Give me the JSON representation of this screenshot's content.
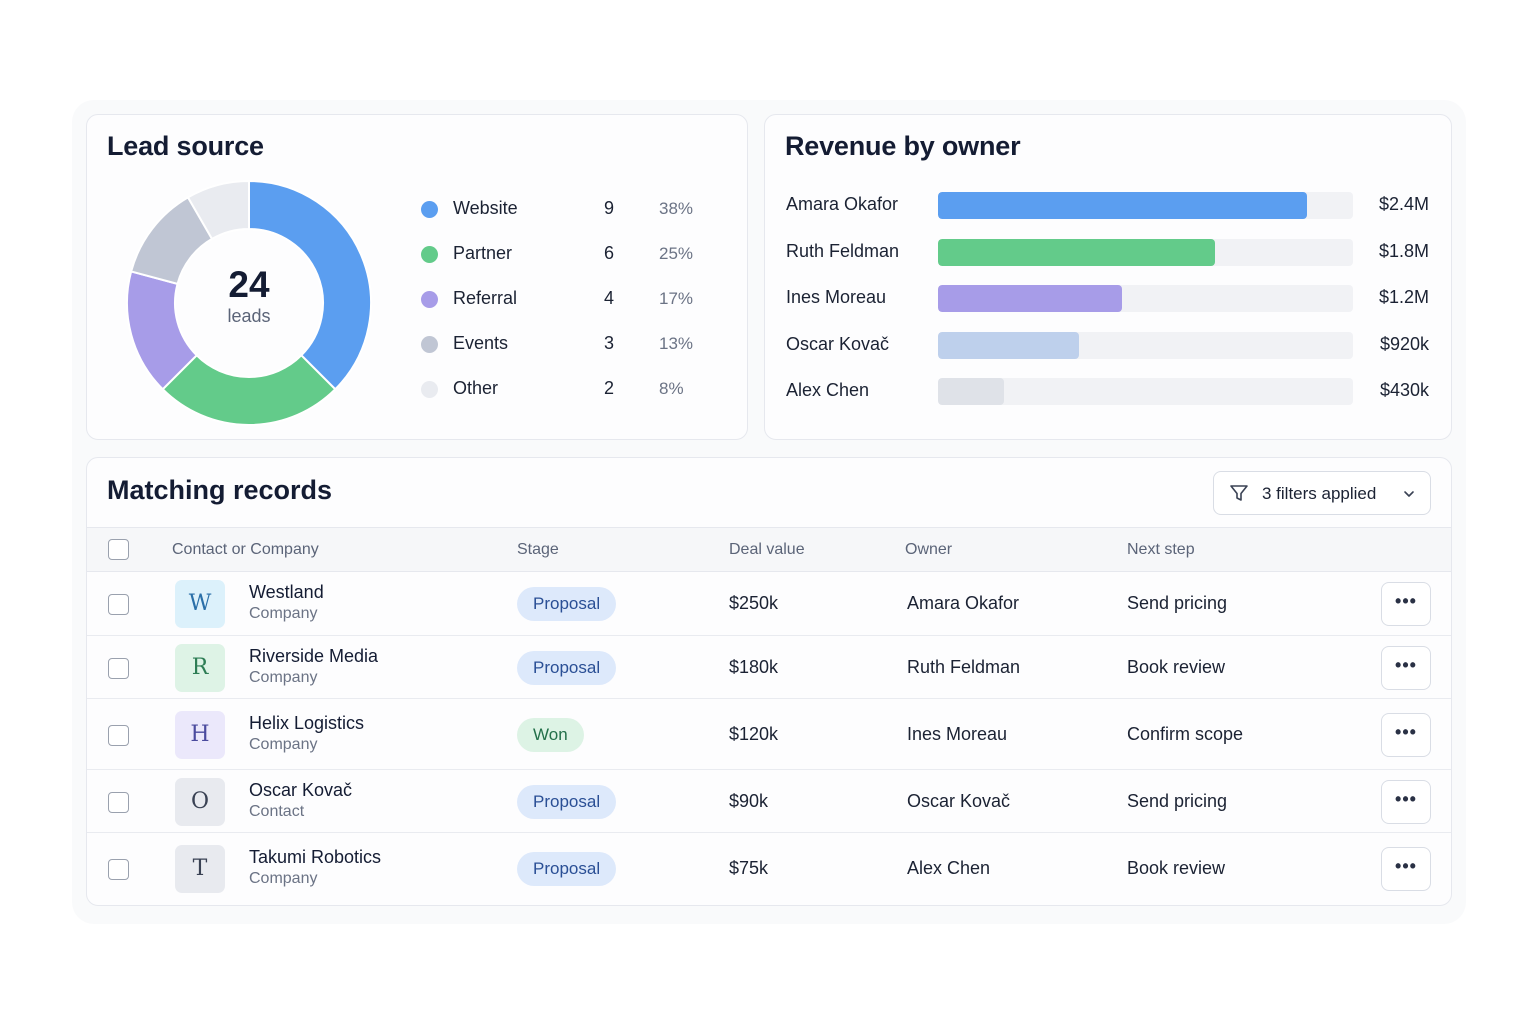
{
  "lead_source": {
    "title": "Lead source",
    "total": "24",
    "total_label": "leads",
    "items": [
      {
        "label": "Website",
        "count": "9",
        "pct": "38%",
        "value": 9,
        "color": "#5b9ef0"
      },
      {
        "label": "Partner",
        "count": "6",
        "pct": "25%",
        "value": 6,
        "color": "#63cb8a"
      },
      {
        "label": "Referral",
        "count": "4",
        "pct": "17%",
        "value": 4,
        "color": "#a79ce8"
      },
      {
        "label": "Events",
        "count": "3",
        "pct": "13%",
        "value": 3,
        "color": "#c0c6d4"
      },
      {
        "label": "Other",
        "count": "2",
        "pct": "8%",
        "value": 2,
        "color": "#e9ebf0"
      }
    ]
  },
  "revenue": {
    "title": "Revenue by owner",
    "max": 2.7,
    "items": [
      {
        "owner": "Amara Okafor",
        "value_label": "$2.4M",
        "value": 2.4,
        "color": "#5b9ef0"
      },
      {
        "owner": "Ruth Feldman",
        "value_label": "$1.8M",
        "value": 1.8,
        "color": "#63cb8a"
      },
      {
        "owner": "Ines Moreau",
        "value_label": "$1.2M",
        "value": 1.2,
        "color": "#a79ce8"
      },
      {
        "owner": "Oscar Kovač",
        "value_label": "$920k",
        "value": 0.92,
        "color": "#bed0ec"
      },
      {
        "owner": "Alex Chen",
        "value_label": "$430k",
        "value": 0.43,
        "color": "#dfe2e8"
      }
    ]
  },
  "records": {
    "title": "Matching records",
    "filter_label": "3 filters applied",
    "columns": {
      "contact": "Contact or Company",
      "stage": "Stage",
      "deal": "Deal value",
      "owner": "Owner",
      "next": "Next step"
    },
    "more_label": "•••",
    "rows": [
      {
        "initial": "W",
        "name": "Westland",
        "type": "Company",
        "stage": "Proposal",
        "deal": "$250k",
        "owner": "Amara Okafor",
        "next": "Send pricing",
        "avatar_bg": "#dcf1fb",
        "avatar_fg": "#2a6fa8"
      },
      {
        "initial": "R",
        "name": "Riverside Media",
        "type": "Company",
        "stage": "Proposal",
        "deal": "$180k",
        "owner": "Ruth Feldman",
        "next": "Book review",
        "avatar_bg": "#def3e6",
        "avatar_fg": "#2e7d55"
      },
      {
        "initial": "H",
        "name": "Helix Logistics",
        "type": "Company",
        "stage": "Won",
        "deal": "$120k",
        "owner": "Ines Moreau",
        "next": "Confirm scope",
        "avatar_bg": "#ebe8fb",
        "avatar_fg": "#4b4b9e"
      },
      {
        "initial": "O",
        "name": "Oscar Kovač",
        "type": "Contact",
        "stage": "Proposal",
        "deal": "$90k",
        "owner": "Oscar Kovač",
        "next": "Send pricing",
        "avatar_bg": "#e8eaef",
        "avatar_fg": "#3a4254"
      },
      {
        "initial": "T",
        "name": "Takumi Robotics",
        "type": "Company",
        "stage": "Proposal",
        "deal": "$75k",
        "owner": "Alex Chen",
        "next": "Book review",
        "avatar_bg": "#e8eaef",
        "avatar_fg": "#3a4254"
      }
    ]
  }
}
